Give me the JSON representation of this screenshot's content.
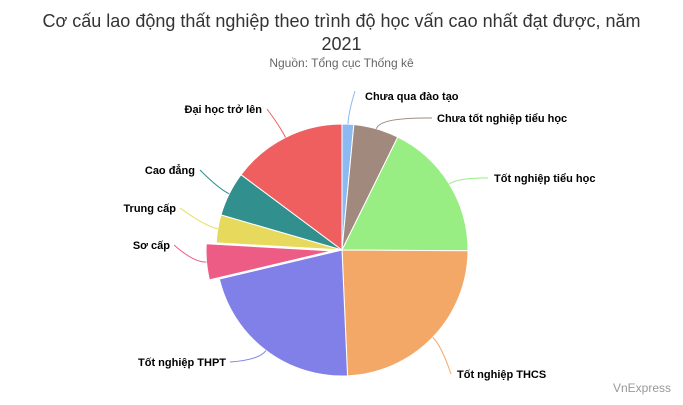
{
  "chart_data": {
    "type": "pie",
    "title_line1": "Cơ cấu lao động thất nghiệp theo trình độ học vấn cao nhất đạt được, năm",
    "title_line2": "2021",
    "subtitle": "Nguồn: Tổng cục Thống kê",
    "credit": "VnExpress",
    "slices": [
      {
        "label": "Chưa qua đào tạo",
        "value": 1.5,
        "color": "#8cb9f2"
      },
      {
        "label": "Chưa tốt nghiệp tiểu học",
        "value": 5.8,
        "color": "#a2897d"
      },
      {
        "label": "Tốt nghiệp tiểu học",
        "value": 17.8,
        "color": "#98ee83"
      },
      {
        "label": "Tốt nghiệp THCS",
        "value": 24.2,
        "color": "#f4a867"
      },
      {
        "label": "Tốt nghiệp THPT",
        "value": 22.0,
        "color": "#8080e8"
      },
      {
        "label": "Sơ cấp",
        "value": 4.6,
        "color": "#ec5c84"
      },
      {
        "label": "Trung cấp",
        "value": 3.6,
        "color": "#e7d95c"
      },
      {
        "label": "Cao đẳng",
        "value": 5.7,
        "color": "#318f8e"
      },
      {
        "label": "Đại học trở lên",
        "value": 14.8,
        "color": "#f05f5f"
      }
    ],
    "offset_slice": "Sơ cấp"
  }
}
